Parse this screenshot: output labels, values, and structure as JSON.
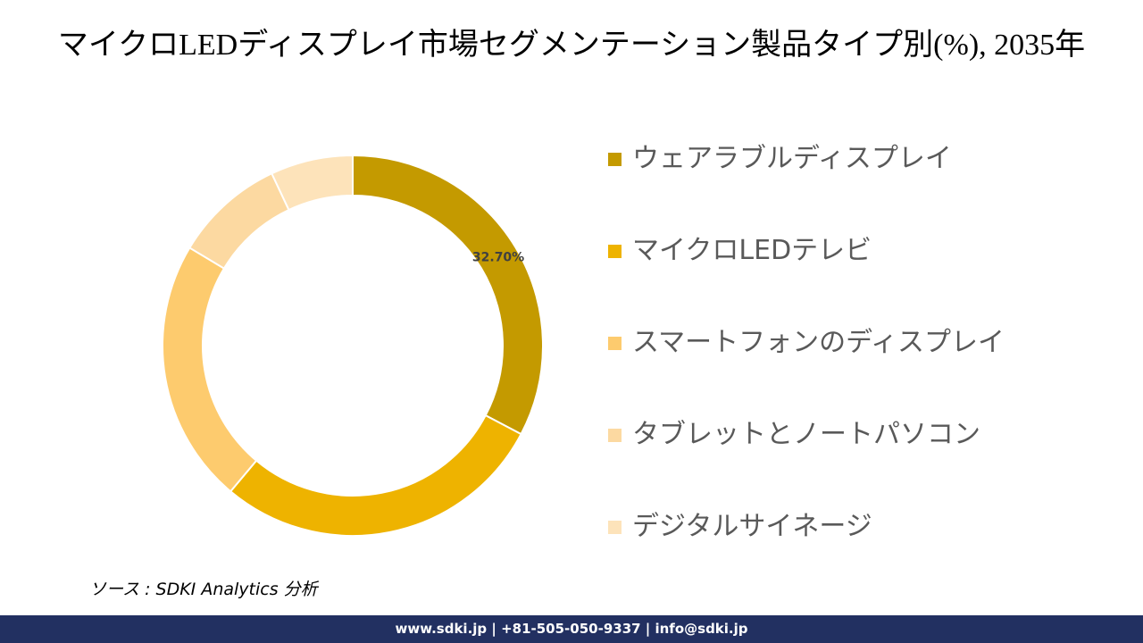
{
  "chart_data": {
    "type": "donut",
    "title": "マイクロLEDディスプレイ市場セグメンテーション製品タイプ別(%), 2035年",
    "categories": [
      "ウェアラブルディスプレイ",
      "マイクロLEDテレビ",
      "スマートフォンのディスプレイ",
      "タブレットとノートパソコン",
      "デジタルサイネージ"
    ],
    "values": [
      32.7,
      28.4,
      22.5,
      9.4,
      7.0
    ],
    "value_labels": [
      "32.70%",
      null,
      null,
      null,
      null
    ],
    "colors": [
      "#C49A00",
      "#EEB300",
      "#FDCB6E",
      "#FCD9A1",
      "#FDE3BA"
    ],
    "legend": "right"
  },
  "source": "ソース : SDKI Analytics 分析",
  "footer": "www.sdki.jp | +81-505-050-9337 | info@sdki.jp"
}
